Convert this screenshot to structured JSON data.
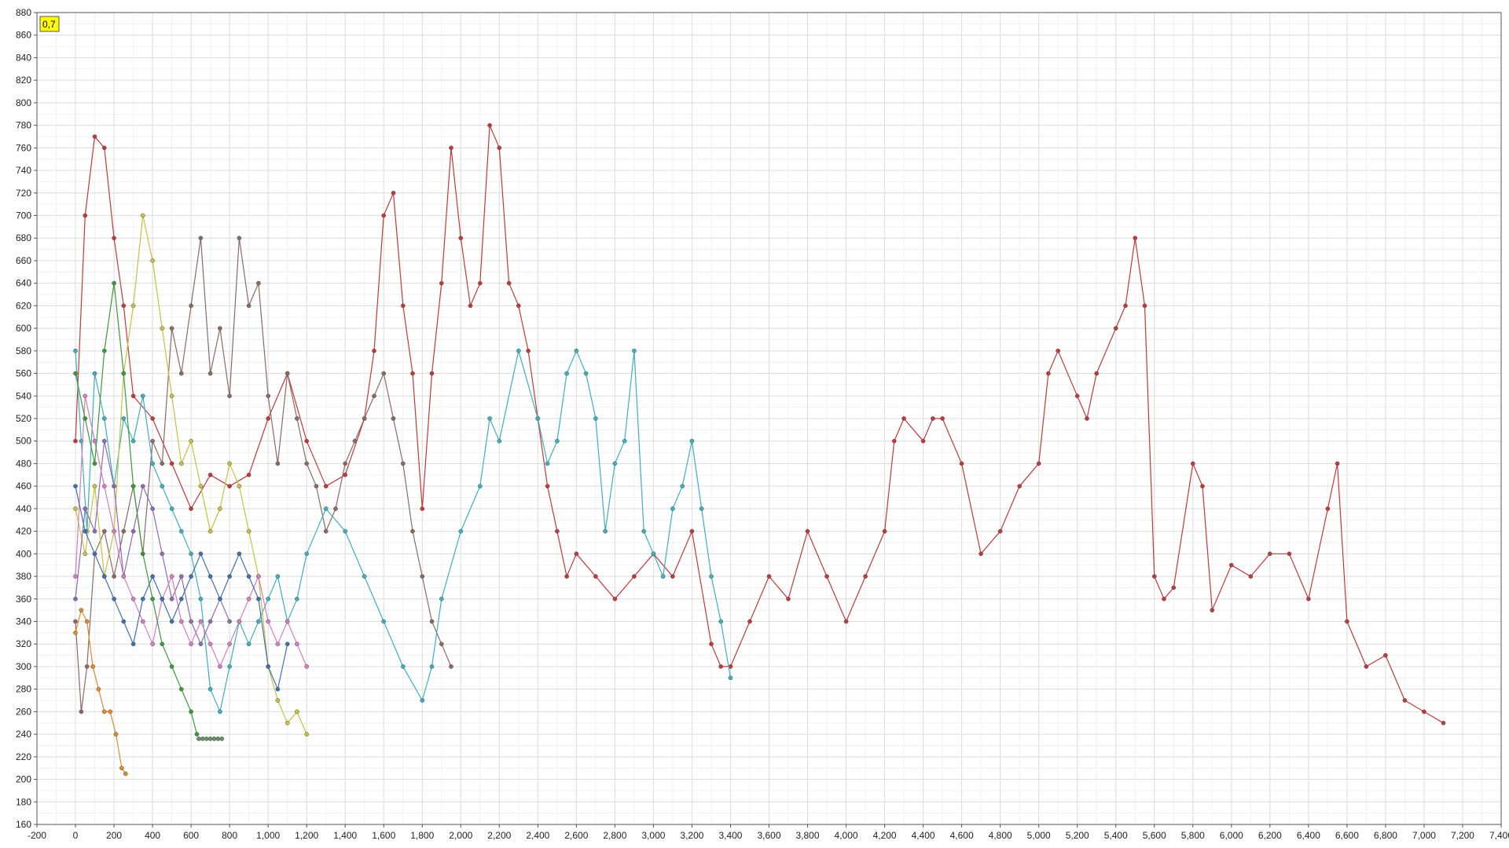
{
  "badge": {
    "label": "0,7",
    "color": "#ffff00"
  },
  "chart_data": {
    "type": "line",
    "markers": true,
    "grid": true,
    "legend": "none",
    "title": "",
    "xlabel": "",
    "ylabel": "",
    "xlim": [
      -200,
      7400
    ],
    "ylim": [
      160,
      880
    ],
    "x_ticks": [
      -200,
      0,
      200,
      400,
      600,
      800,
      1000,
      1200,
      1400,
      1600,
      1800,
      2000,
      2200,
      2400,
      2600,
      2800,
      3000,
      3200,
      3400,
      3600,
      3800,
      4000,
      4200,
      4400,
      4600,
      4800,
      5000,
      5200,
      5400,
      5600,
      5800,
      6000,
      6200,
      6400,
      6600,
      6800,
      7000,
      7200,
      7400
    ],
    "x_tick_labels": [
      "-200",
      "0",
      "200",
      "400",
      "600",
      "800",
      "1,000",
      "1,200",
      "1,400",
      "1,600",
      "1,800",
      "2,000",
      "2,200",
      "2,400",
      "2,600",
      "2,800",
      "3,000",
      "3,200",
      "3,400",
      "3,600",
      "3,800",
      "4,000",
      "4,200",
      "4,400",
      "4,600",
      "4,800",
      "5,000",
      "5,200",
      "5,400",
      "5,600",
      "5,800",
      "6,000",
      "6,200",
      "6,400",
      "6,600",
      "6,800",
      "7,000",
      "7,200",
      "7,400"
    ],
    "y_ticks": [
      160,
      180,
      200,
      220,
      240,
      260,
      280,
      300,
      320,
      340,
      360,
      380,
      400,
      420,
      440,
      460,
      480,
      500,
      520,
      540,
      560,
      580,
      600,
      620,
      640,
      660,
      680,
      700,
      720,
      740,
      760,
      780,
      800,
      820,
      840,
      860,
      880
    ],
    "y_tick_labels": [
      "160",
      "180",
      "200",
      "220",
      "240",
      "260",
      "280",
      "300",
      "320",
      "340",
      "360",
      "380",
      "400",
      "420",
      "440",
      "460",
      "480",
      "500",
      "520",
      "540",
      "560",
      "580",
      "600",
      "620",
      "640",
      "660",
      "680",
      "700",
      "720",
      "740",
      "760",
      "780",
      "800",
      "820",
      "840",
      "860",
      "880"
    ],
    "series": [
      {
        "color": "#c0393b",
        "x": [
          0,
          50,
          100,
          150,
          200,
          250,
          300,
          400,
          500,
          600,
          700,
          800,
          900,
          1000,
          1100,
          1200,
          1300,
          1400,
          1500,
          1550,
          1600,
          1650,
          1700,
          1750,
          1800,
          1850,
          1900,
          1950,
          2000,
          2050,
          2100,
          2150,
          2200,
          2250,
          2300,
          2350,
          2400,
          2450,
          2500,
          2550,
          2600,
          2700,
          2800,
          2900,
          3000,
          3100,
          3200,
          3300,
          3350,
          3400,
          3500,
          3600,
          3700,
          3800,
          3900,
          4000,
          4100,
          4200,
          4250,
          4300,
          4400,
          4450,
          4500,
          4600,
          4700,
          4800,
          4900,
          5000,
          5050,
          5100,
          5200,
          5250,
          5300,
          5400,
          5450,
          5500,
          5550,
          5600,
          5650,
          5700,
          5800,
          5850,
          5900,
          6000,
          6100,
          6200,
          6300,
          6400,
          6500,
          6550,
          6600,
          6700,
          6800,
          6900,
          7000,
          7100
        ],
        "y": [
          500,
          700,
          770,
          760,
          680,
          620,
          540,
          520,
          480,
          440,
          470,
          460,
          470,
          520,
          560,
          500,
          460,
          470,
          520,
          580,
          700,
          720,
          620,
          560,
          440,
          560,
          640,
          760,
          680,
          620,
          640,
          780,
          760,
          640,
          620,
          580,
          520,
          460,
          420,
          380,
          400,
          380,
          360,
          380,
          400,
          380,
          420,
          320,
          300,
          300,
          340,
          380,
          360,
          420,
          380,
          340,
          380,
          420,
          500,
          520,
          500,
          520,
          520,
          480,
          400,
          420,
          460,
          480,
          560,
          580,
          540,
          520,
          560,
          600,
          620,
          680,
          620,
          380,
          360,
          370,
          480,
          460,
          350,
          390,
          380,
          400,
          400,
          360,
          440,
          480,
          340,
          300,
          310,
          270,
          260,
          250
        ]
      },
      {
        "color": "#8b6a64",
        "x": [
          0,
          30,
          60,
          100,
          150,
          200,
          250,
          300,
          350,
          400,
          450,
          500,
          550,
          600,
          650,
          700,
          750,
          800,
          850,
          900,
          950,
          1000,
          1050,
          1100,
          1150,
          1200,
          1250,
          1300,
          1350,
          1400,
          1450,
          1500,
          1550,
          1600,
          1650,
          1700,
          1750,
          1800,
          1850,
          1900,
          1950
        ],
        "y": [
          340,
          260,
          300,
          400,
          420,
          380,
          420,
          460,
          400,
          500,
          480,
          600,
          560,
          620,
          680,
          560,
          600,
          540,
          680,
          620,
          640,
          540,
          480,
          560,
          520,
          480,
          460,
          420,
          440,
          480,
          500,
          520,
          540,
          560,
          520,
          480,
          420,
          380,
          340,
          320,
          300
        ]
      },
      {
        "color": "#3cb0bd",
        "x": [
          0,
          30,
          60,
          100,
          150,
          200,
          250,
          300,
          350,
          400,
          450,
          500,
          550,
          600,
          650,
          700,
          750,
          800,
          850,
          900,
          950,
          1000,
          1050,
          1100,
          1150,
          1200,
          1300,
          1400,
          1500,
          1600,
          1700,
          1800,
          1850,
          1900,
          2000,
          2100,
          2150,
          2200,
          2300,
          2400,
          2450,
          2500,
          2550,
          2600,
          2650,
          2700,
          2750,
          2800,
          2850,
          2900,
          2950,
          3000,
          3050,
          3100,
          3150,
          3200,
          3250,
          3300,
          3350,
          3400
        ],
        "y": [
          580,
          500,
          420,
          560,
          520,
          460,
          520,
          500,
          540,
          480,
          460,
          440,
          420,
          400,
          360,
          280,
          260,
          300,
          340,
          320,
          340,
          360,
          380,
          340,
          360,
          400,
          440,
          420,
          380,
          340,
          300,
          270,
          300,
          360,
          420,
          460,
          520,
          500,
          580,
          520,
          480,
          500,
          560,
          580,
          560,
          520,
          420,
          480,
          500,
          580,
          420,
          400,
          380,
          440,
          460,
          500,
          440,
          380,
          340,
          290
        ]
      },
      {
        "color": "#c8c040",
        "x": [
          0,
          50,
          100,
          150,
          200,
          250,
          300,
          350,
          400,
          450,
          500,
          550,
          600,
          650,
          700,
          750,
          800,
          850,
          900,
          950,
          1000,
          1050,
          1100,
          1150,
          1200
        ],
        "y": [
          440,
          400,
          460,
          380,
          420,
          560,
          620,
          700,
          660,
          600,
          540,
          480,
          500,
          460,
          420,
          440,
          480,
          460,
          420,
          380,
          300,
          270,
          250,
          260,
          240
        ]
      },
      {
        "color": "#8e6bb0",
        "x": [
          0,
          50,
          100,
          150,
          200,
          250,
          300,
          350,
          400,
          450,
          500,
          550,
          600,
          650,
          700,
          750,
          800
        ],
        "y": [
          360,
          440,
          420,
          500,
          460,
          380,
          420,
          460,
          440,
          400,
          360,
          380,
          340,
          320,
          340,
          360,
          340
        ]
      },
      {
        "color": "#d67cc0",
        "x": [
          0,
          50,
          100,
          150,
          200,
          250,
          300,
          350,
          400,
          450,
          500,
          550,
          600,
          650,
          700,
          750,
          800,
          850,
          900,
          950,
          1000,
          1050,
          1100,
          1150,
          1200
        ],
        "y": [
          380,
          540,
          500,
          460,
          420,
          380,
          360,
          340,
          320,
          360,
          380,
          340,
          320,
          340,
          320,
          300,
          320,
          340,
          360,
          380,
          340,
          320,
          340,
          320,
          300
        ]
      },
      {
        "color": "#3f6fb3",
        "x": [
          0,
          50,
          100,
          150,
          200,
          250,
          300,
          350,
          400,
          450,
          500,
          550,
          600,
          650,
          700,
          750,
          800,
          850,
          900,
          950,
          1000,
          1050,
          1100
        ],
        "y": [
          460,
          420,
          400,
          380,
          360,
          340,
          320,
          360,
          380,
          360,
          340,
          360,
          380,
          400,
          380,
          360,
          380,
          400,
          380,
          360,
          300,
          280,
          320
        ]
      },
      {
        "color": "#3a9a3a",
        "x": [
          0,
          50,
          100,
          150,
          200,
          250,
          300,
          350,
          400,
          450,
          500,
          550,
          600,
          630
        ],
        "y": [
          560,
          520,
          480,
          580,
          640,
          560,
          460,
          400,
          360,
          320,
          300,
          280,
          260,
          240
        ]
      },
      {
        "color": "#e08a2c",
        "x": [
          0,
          30,
          60,
          90,
          120,
          150,
          180,
          210,
          240,
          260
        ],
        "y": [
          330,
          350,
          340,
          300,
          280,
          260,
          260,
          240,
          210,
          205
        ]
      },
      {
        "color": "#6a8f6a",
        "x": [
          640,
          660,
          680,
          700,
          720,
          740,
          760
        ],
        "y": [
          236,
          236,
          236,
          236,
          236,
          236,
          236
        ]
      }
    ]
  }
}
